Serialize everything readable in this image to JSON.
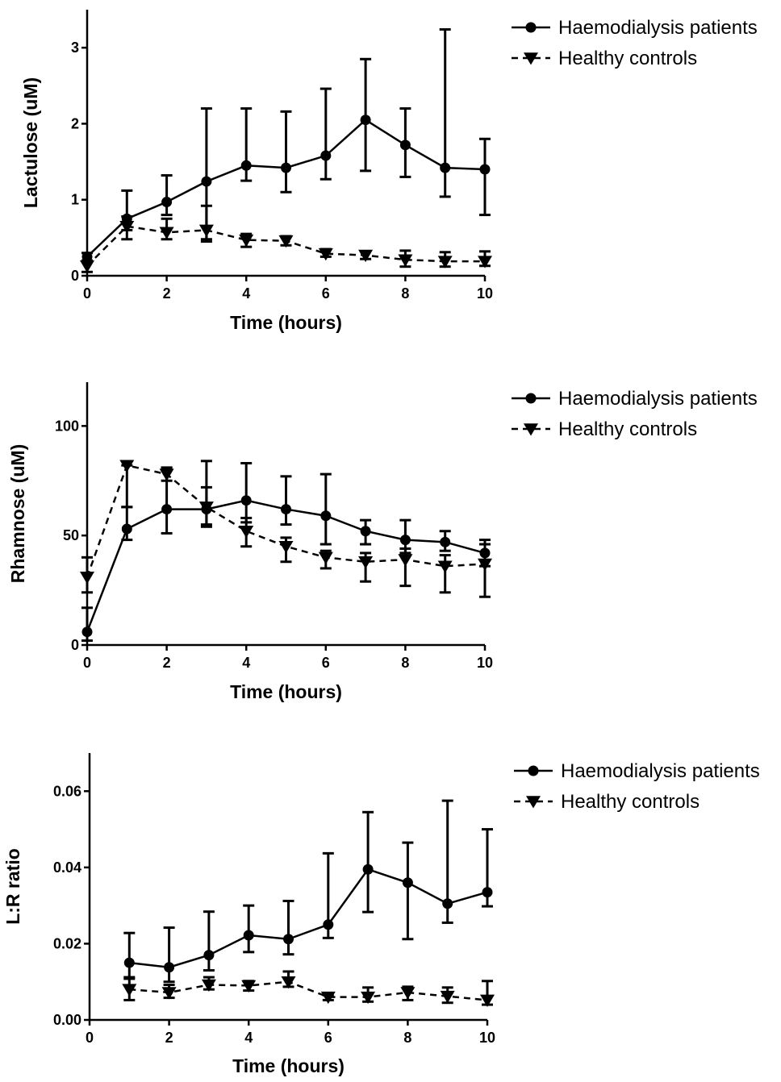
{
  "chart_data": [
    {
      "type": "line",
      "xlabel": "Time (hours)",
      "ylabel": "Lactulose (uM)",
      "xlim": [
        0,
        10
      ],
      "ylim": [
        0,
        3.5
      ],
      "xticks": [
        "0",
        "2",
        "4",
        "6",
        "8",
        "10"
      ],
      "xtick_values": [
        0,
        2,
        4,
        6,
        8,
        10
      ],
      "yticks": [
        "0",
        "1",
        "2",
        "3"
      ],
      "ytick_values": [
        0,
        1,
        2,
        3
      ],
      "legend_position": "top-right",
      "series": [
        {
          "name": "Haemodialysis patients",
          "marker": "circle",
          "line_style": "solid",
          "x": [
            0,
            1,
            2,
            3,
            4,
            5,
            6,
            7,
            8,
            9,
            10
          ],
          "y": [
            0.25,
            0.75,
            0.97,
            1.24,
            1.45,
            1.42,
            1.58,
            2.05,
            1.72,
            1.42,
            1.4
          ],
          "err_low": [
            0.18,
            0.6,
            0.8,
            0.48,
            1.25,
            1.1,
            1.27,
            1.38,
            1.3,
            1.04,
            0.8
          ],
          "err_high": [
            0.3,
            1.12,
            1.32,
            2.2,
            2.2,
            2.16,
            2.46,
            2.85,
            2.2,
            3.24,
            1.8
          ]
        },
        {
          "name": "Healthy controls",
          "marker": "triangle-down",
          "line_style": "dashed",
          "x": [
            0,
            1,
            2,
            3,
            4,
            5,
            6,
            7,
            8,
            9,
            10
          ],
          "y": [
            0.13,
            0.65,
            0.57,
            0.6,
            0.47,
            0.46,
            0.29,
            0.27,
            0.21,
            0.19,
            0.19
          ],
          "err_low": [
            0.05,
            0.48,
            0.48,
            0.45,
            0.38,
            0.4,
            0.25,
            0.22,
            0.12,
            0.12,
            0.13
          ],
          "err_high": [
            0.2,
            0.78,
            0.75,
            0.92,
            0.55,
            0.52,
            0.35,
            0.32,
            0.33,
            0.31,
            0.32
          ]
        }
      ]
    },
    {
      "type": "line",
      "xlabel": "Time (hours)",
      "ylabel": "Rhamnose (uM)",
      "xlim": [
        0,
        10
      ],
      "ylim": [
        0,
        120
      ],
      "xticks": [
        "0",
        "2",
        "4",
        "6",
        "8",
        "10"
      ],
      "xtick_values": [
        0,
        2,
        4,
        6,
        8,
        10
      ],
      "yticks": [
        "0",
        "50",
        "100"
      ],
      "ytick_values": [
        0,
        50,
        100
      ],
      "legend_position": "top-right",
      "series": [
        {
          "name": "Haemodialysis patients",
          "marker": "circle",
          "line_style": "solid",
          "x": [
            0,
            1,
            2,
            3,
            4,
            5,
            6,
            7,
            8,
            9,
            10
          ],
          "y": [
            6,
            53,
            62,
            62,
            66,
            62,
            59,
            52,
            48,
            47,
            42
          ],
          "err_low": [
            2,
            48,
            51,
            55,
            56,
            55,
            46,
            46,
            42,
            43,
            36
          ],
          "err_high": [
            17,
            63,
            81,
            84,
            83,
            77,
            78,
            57,
            57,
            52,
            48
          ]
        },
        {
          "name": "Healthy controls",
          "marker": "triangle-down",
          "line_style": "dashed",
          "x": [
            0,
            1,
            2,
            3,
            4,
            5,
            6,
            7,
            8,
            9,
            10
          ],
          "y": [
            31,
            82,
            78,
            63,
            52,
            45,
            40,
            38,
            39,
            36,
            37
          ],
          "err_low": [
            24,
            63,
            75,
            54,
            45,
            38,
            35,
            29,
            27,
            24,
            22
          ],
          "err_high": [
            40,
            82,
            81,
            72,
            58,
            49,
            43,
            42,
            44,
            41,
            46
          ]
        }
      ]
    },
    {
      "type": "line",
      "xlabel": "Time (hours)",
      "ylabel": "L:R ratio",
      "xlim": [
        0,
        10
      ],
      "ylim": [
        0,
        0.07
      ],
      "xticks": [
        "0",
        "2",
        "4",
        "6",
        "8",
        "10"
      ],
      "xtick_values": [
        0,
        2,
        4,
        6,
        8,
        10
      ],
      "yticks": [
        "0.00",
        "0.02",
        "0.04",
        "0.06"
      ],
      "ytick_values": [
        0,
        0.02,
        0.04,
        0.06
      ],
      "legend_position": "top-right",
      "series": [
        {
          "name": "Haemodialysis patients",
          "marker": "circle",
          "line_style": "solid",
          "x": [
            1,
            2,
            3,
            4,
            5,
            6,
            7,
            8,
            9,
            10
          ],
          "y": [
            0.015,
            0.0138,
            0.017,
            0.0222,
            0.0212,
            0.025,
            0.0395,
            0.036,
            0.0305,
            0.0335
          ],
          "err_low": [
            0.0108,
            0.01,
            0.013,
            0.0178,
            0.0172,
            0.0215,
            0.0283,
            0.0212,
            0.0255,
            0.0298
          ],
          "err_high": [
            0.0228,
            0.0242,
            0.0284,
            0.03,
            0.0312,
            0.0437,
            0.0545,
            0.0465,
            0.0575,
            0.05
          ]
        },
        {
          "name": "Healthy controls",
          "marker": "triangle-down",
          "line_style": "dashed",
          "x": [
            1,
            2,
            3,
            4,
            5,
            6,
            7,
            8,
            9,
            10
          ],
          "y": [
            0.008,
            0.0072,
            0.0092,
            0.009,
            0.01,
            0.006,
            0.006,
            0.0072,
            0.0062,
            0.0052
          ],
          "err_low": [
            0.0052,
            0.0058,
            0.008,
            0.0077,
            0.0087,
            0.0052,
            0.0048,
            0.0052,
            0.0045,
            0.004
          ],
          "err_high": [
            0.0112,
            0.0092,
            0.0112,
            0.0102,
            0.0127,
            0.0065,
            0.0085,
            0.0087,
            0.0085,
            0.0102
          ]
        }
      ]
    }
  ]
}
